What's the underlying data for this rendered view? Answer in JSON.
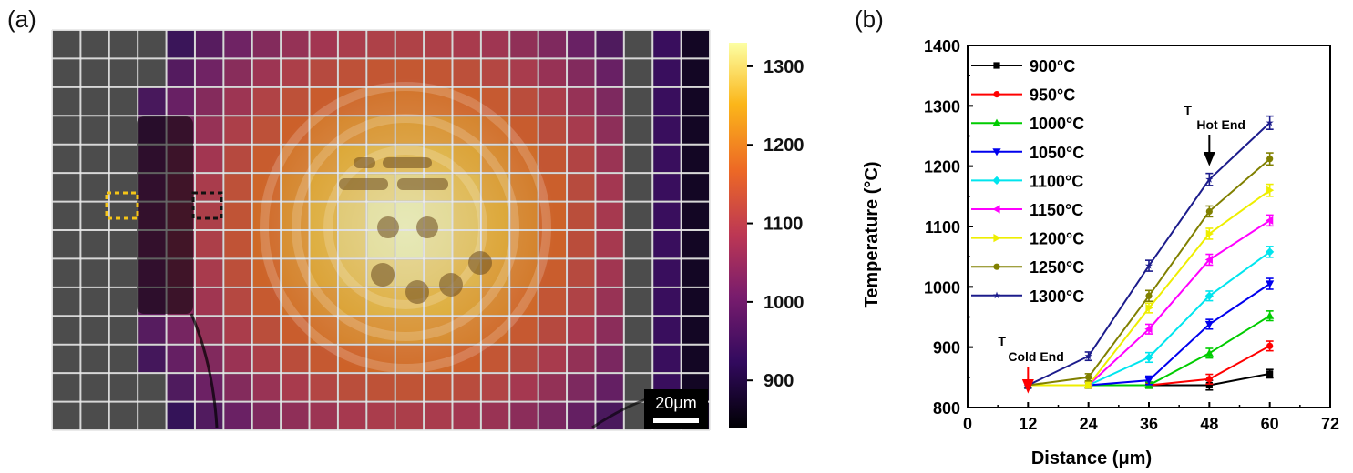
{
  "panels": {
    "a_label": "(a)",
    "b_label": "(b)"
  },
  "heatmap": {
    "scale_bar_label": "20μm",
    "colorbar_ticks": [
      900,
      1000,
      1100,
      1200,
      1300
    ],
    "colorbar_range": [
      840,
      1330
    ],
    "colormap": [
      "#000004",
      "#320a5e",
      "#781c6d",
      "#bc3754",
      "#ed6925",
      "#fbb61a",
      "#fcffa4"
    ],
    "cold_marker_color": "#f5c518",
    "hot_marker_color": "#111111"
  },
  "chart_data": {
    "type": "line",
    "xlabel": "Distance (μm)",
    "ylabel": "Temperature (°C)",
    "xlim": [
      0,
      72
    ],
    "ylim": [
      800,
      1400
    ],
    "xticks": [
      0,
      12,
      24,
      36,
      48,
      60,
      72
    ],
    "yticks": [
      800,
      900,
      1000,
      1100,
      1200,
      1300,
      1400
    ],
    "x": [
      12,
      24,
      36,
      48,
      60
    ],
    "legend_position": "top-left",
    "grid": false,
    "series": [
      {
        "name": "900°C",
        "color": "#000000",
        "marker": "square",
        "values": [
          837,
          837,
          837,
          837,
          856
        ],
        "errors": [
          5,
          5,
          5,
          8,
          7
        ]
      },
      {
        "name": "950°C",
        "color": "#ff0000",
        "marker": "circle",
        "values": [
          837,
          837,
          837,
          847,
          902
        ],
        "errors": [
          5,
          5,
          5,
          8,
          8
        ]
      },
      {
        "name": "1000°C",
        "color": "#00cc00",
        "marker": "triangle-up",
        "values": [
          837,
          837,
          837,
          890,
          952
        ],
        "errors": [
          5,
          5,
          5,
          8,
          8
        ]
      },
      {
        "name": "1050°C",
        "color": "#0000ee",
        "marker": "triangle-down",
        "values": [
          837,
          837,
          845,
          938,
          1005
        ],
        "errors": [
          5,
          5,
          7,
          8,
          9
        ]
      },
      {
        "name": "1100°C",
        "color": "#00e5ee",
        "marker": "diamond",
        "values": [
          837,
          837,
          883,
          985,
          1058
        ],
        "errors": [
          5,
          5,
          8,
          8,
          9
        ]
      },
      {
        "name": "1150°C",
        "color": "#ff00ff",
        "marker": "triangle-left",
        "values": [
          837,
          837,
          930,
          1045,
          1110
        ],
        "errors": [
          5,
          5,
          8,
          9,
          9
        ]
      },
      {
        "name": "1200°C",
        "color": "#eeee00",
        "marker": "triangle-right",
        "values": [
          837,
          837,
          965,
          1088,
          1160
        ],
        "errors": [
          5,
          5,
          8,
          9,
          10
        ]
      },
      {
        "name": "1250°C",
        "color": "#808000",
        "marker": "hexagon",
        "values": [
          837,
          850,
          985,
          1125,
          1212
        ],
        "errors": [
          5,
          6,
          9,
          9,
          10
        ]
      },
      {
        "name": "1300°C",
        "color": "#1c1c8c",
        "marker": "star",
        "values": [
          837,
          885,
          1035,
          1178,
          1272
        ],
        "errors": [
          5,
          7,
          9,
          10,
          11
        ]
      }
    ],
    "annotations": [
      {
        "text": "T",
        "sub": "Hot End",
        "at_x": 48,
        "color": "#000000"
      },
      {
        "text": "T",
        "sub": "Cold End",
        "at_x": 12,
        "color": "#ff0000"
      }
    ]
  }
}
